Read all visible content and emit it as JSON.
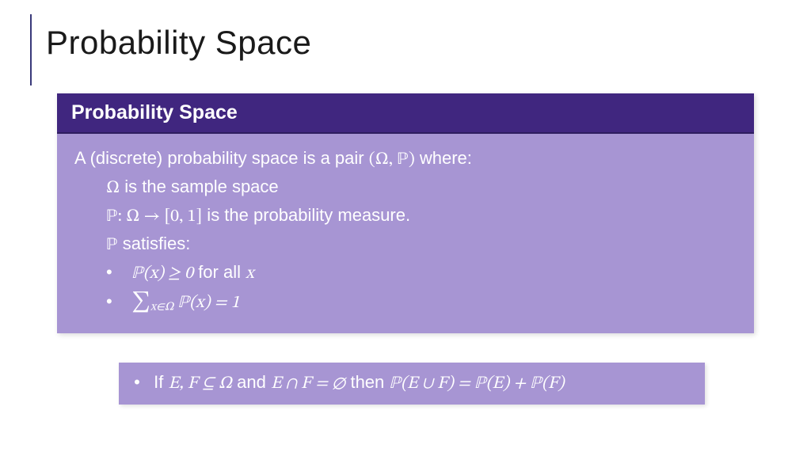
{
  "colors": {
    "header_bg": "#40267f",
    "body_bg": "#a795d3",
    "text": "#ffffff",
    "rule": "#3a3a7a",
    "page_bg": "#ffffff",
    "title_text": "#1a1a1a"
  },
  "slide": {
    "title": "Probability Space"
  },
  "definition": {
    "header": "Probability Space",
    "intro_a": "A (discrete) probability space is a pair ",
    "intro_pair": "(Ω, ℙ)",
    "intro_b": " where:",
    "line_omega_sym": "Ω",
    "line_omega_txt": " is the sample space",
    "line_p_map": "ℙ: Ω → [0, 1]",
    "line_p_map_txt": " is the probability measure.",
    "line_sat_sym": "ℙ",
    "line_sat_txt": " satisfies:",
    "axiom1": "ℙ(x) ≥ 0",
    "axiom1_tail": " for all ",
    "axiom1_x": "x",
    "axiom2_sum": "∑",
    "axiom2_sub": "x∈Ω",
    "axiom2_body": " ℙ(x)  = 1"
  },
  "corollary": {
    "pre": "If ",
    "ef": "E, F ⊆ Ω",
    "mid": " and ",
    "inter": "E ∩ F = ∅",
    "then": " then ",
    "union": "ℙ(E ∪ F) = ℙ(E) + ℙ(F)"
  }
}
